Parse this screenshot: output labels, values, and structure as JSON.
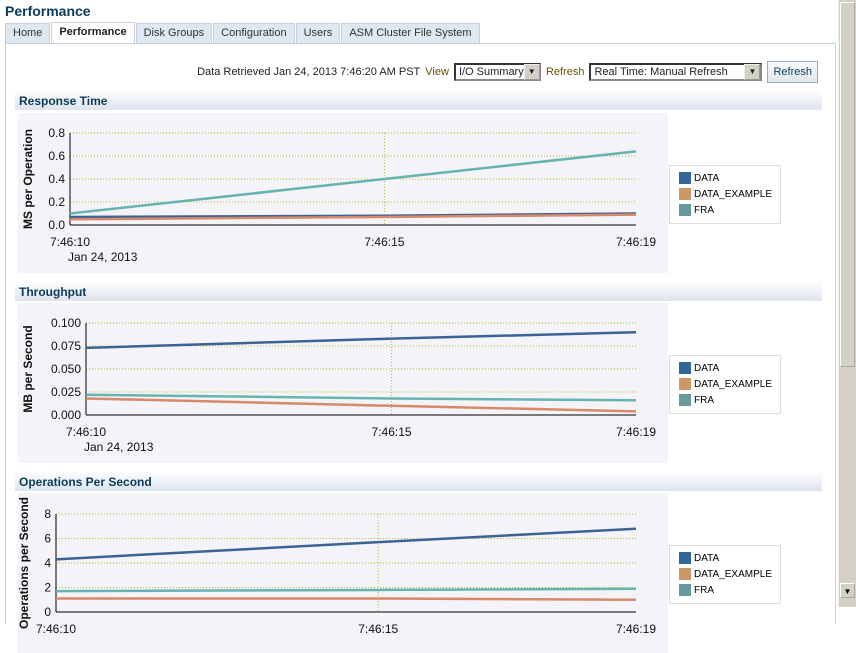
{
  "page_title": "Performance",
  "tabs": [
    {
      "label": "Home"
    },
    {
      "label": "Performance",
      "active": true
    },
    {
      "label": "Disk Groups"
    },
    {
      "label": "Configuration"
    },
    {
      "label": "Users"
    },
    {
      "label": "ASM Cluster File System"
    }
  ],
  "toolbar": {
    "data_retrieved": "Data Retrieved Jan 24, 2013 7:46:20 AM PST",
    "view_label": "View",
    "view_value": "I/O Summary",
    "refresh_label": "Refresh",
    "refresh_value": "Real Time: Manual Refresh",
    "refresh_button": "Refresh"
  },
  "legend": [
    {
      "name": "DATA",
      "color": "#336699"
    },
    {
      "name": "DATA_EXAMPLE",
      "color": "#cc9966"
    },
    {
      "name": "FRA",
      "color": "#669999"
    }
  ],
  "sections": [
    {
      "title": "Response Time"
    },
    {
      "title": "Throughput"
    },
    {
      "title": "Operations Per Second"
    }
  ],
  "chart_data": [
    {
      "type": "line",
      "title": "Response Time",
      "ylabel": "MS per Operation",
      "ylim": [
        0,
        0.8
      ],
      "yticks": [
        "0.0",
        "0.2",
        "0.4",
        "0.6",
        "0.8"
      ],
      "x": [
        "7:46:10",
        "7:46:15",
        "7:46:19"
      ],
      "xsub": "Jan 24, 2013",
      "grid": true,
      "series": [
        {
          "name": "DATA",
          "color": "#3a6496",
          "values": [
            0.07,
            0.08,
            0.1
          ]
        },
        {
          "name": "DATA_EXAMPLE",
          "color": "#d9886a",
          "values": [
            0.05,
            0.07,
            0.09
          ]
        },
        {
          "name": "FRA",
          "color": "#66b3b0",
          "values": [
            0.1,
            0.4,
            0.64
          ]
        }
      ]
    },
    {
      "type": "line",
      "title": "Throughput",
      "ylabel": "MB per Second",
      "ylim": [
        0,
        0.1
      ],
      "yticks": [
        "0.000",
        "0.025",
        "0.050",
        "0.075",
        "0.100"
      ],
      "x": [
        "7:46:10",
        "7:46:15",
        "7:46:19"
      ],
      "xsub": "Jan 24, 2013",
      "grid": true,
      "series": [
        {
          "name": "DATA",
          "color": "#3a6496",
          "values": [
            0.073,
            0.083,
            0.09
          ]
        },
        {
          "name": "DATA_EXAMPLE",
          "color": "#d9886a",
          "values": [
            0.018,
            0.01,
            0.004
          ]
        },
        {
          "name": "FRA",
          "color": "#66b3b0",
          "values": [
            0.022,
            0.018,
            0.016
          ]
        }
      ]
    },
    {
      "type": "line",
      "title": "Operations Per Second",
      "ylabel": "Operations per Second",
      "ylim": [
        0,
        8
      ],
      "yticks": [
        "0",
        "2",
        "4",
        "6",
        "8"
      ],
      "x": [
        "7:46:10",
        "7:46:15",
        "7:46:19"
      ],
      "grid": true,
      "series": [
        {
          "name": "DATA",
          "color": "#3a6496",
          "values": [
            4.3,
            5.7,
            6.8
          ]
        },
        {
          "name": "DATA_EXAMPLE",
          "color": "#d9886a",
          "values": [
            1.1,
            1.1,
            1.0
          ]
        },
        {
          "name": "FRA",
          "color": "#66b3b0",
          "values": [
            1.7,
            1.8,
            1.9
          ]
        }
      ]
    }
  ]
}
